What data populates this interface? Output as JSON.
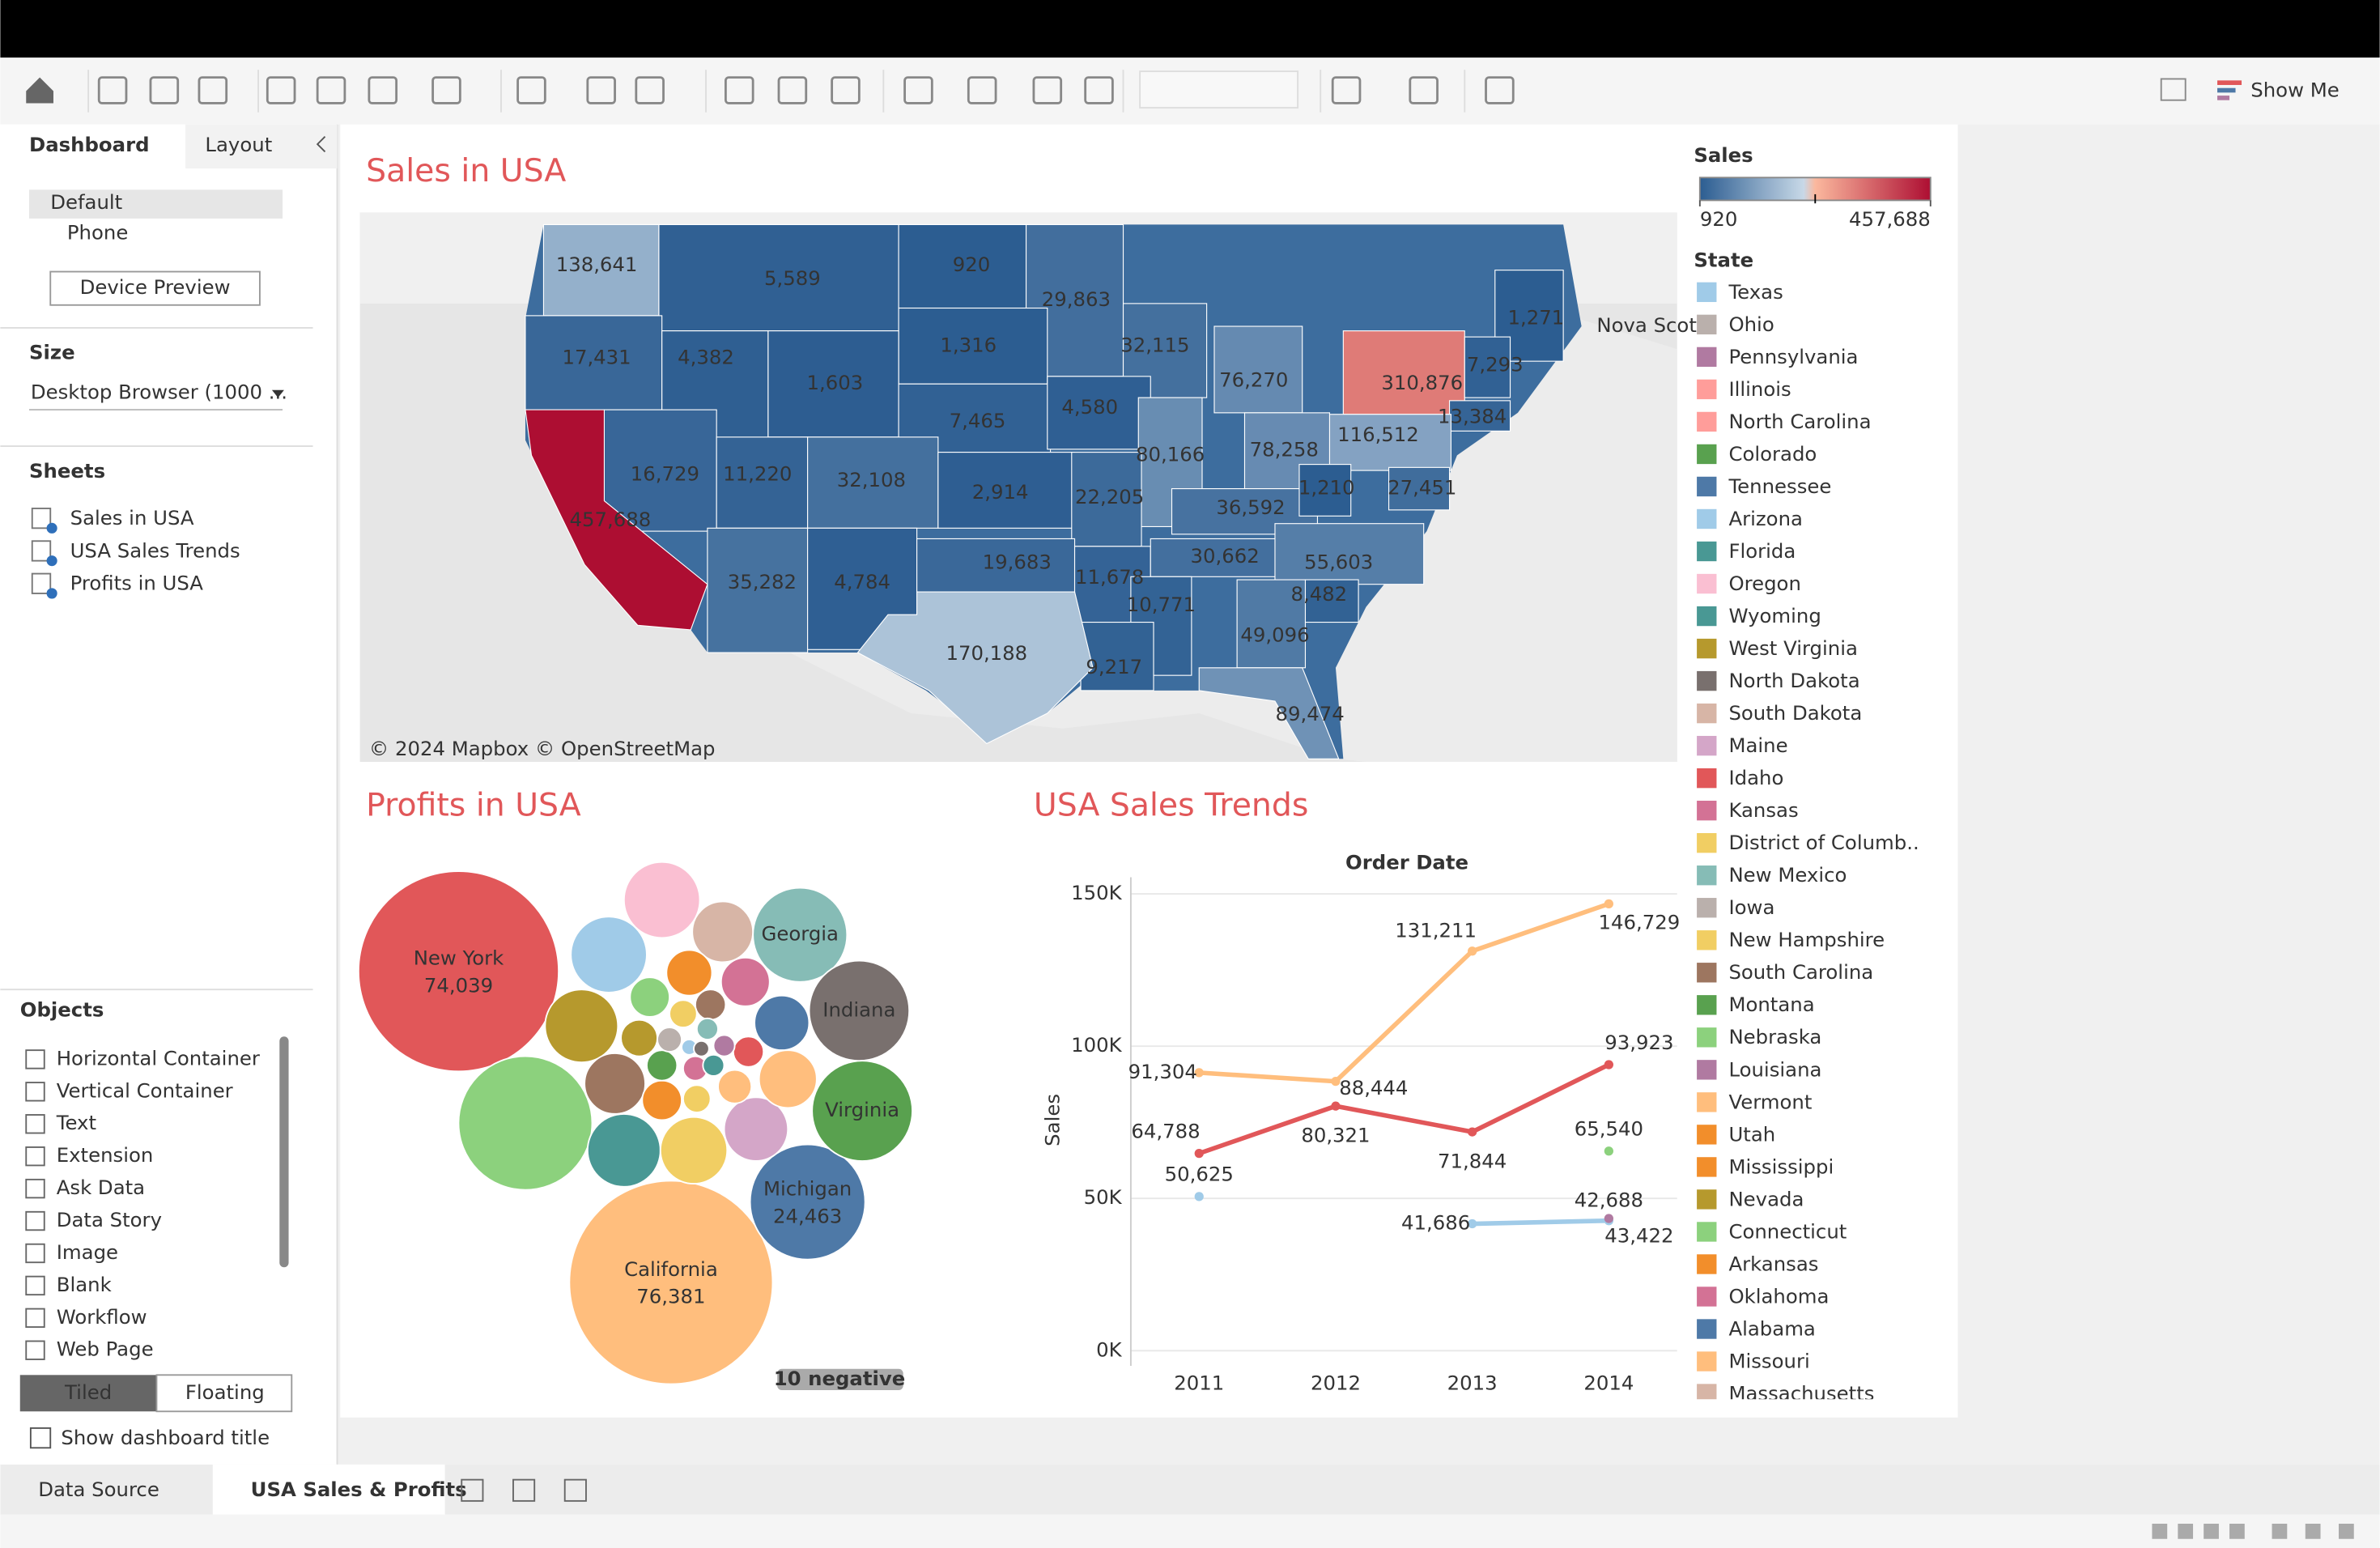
{
  "toolbar": {
    "show_me": "Show Me"
  },
  "sidebar": {
    "tabs": [
      "Dashboard",
      "Layout"
    ],
    "devices": [
      "Default",
      "Phone"
    ],
    "device_preview": "Device Preview",
    "size_heading": "Size",
    "size_value": "Desktop Browser (1000 ...",
    "sheets_heading": "Sheets",
    "sheets": [
      "Sales in USA",
      "USA Sales Trends",
      "Profits in USA"
    ],
    "objects_heading": "Objects",
    "objects": [
      "Horizontal Container",
      "Vertical Container",
      "Text",
      "Extension",
      "Ask Data",
      "Data Story",
      "Image",
      "Blank",
      "Workflow",
      "Web Page"
    ],
    "layout_modes": [
      "Tiled",
      "Floating"
    ],
    "show_title": "Show dashboard title"
  },
  "map": {
    "title": "Sales in USA",
    "values": [
      138641,
      5589,
      920,
      29863,
      1271,
      17431,
      4382,
      1316,
      32115,
      1603,
      76270,
      310876,
      7293,
      13384,
      7465,
      4580,
      116512,
      80166,
      78258,
      16729,
      11220,
      32108,
      2914,
      22205,
      36592,
      1210,
      27451,
      457688,
      35282,
      4784,
      19683,
      11678,
      30662,
      55603,
      10771,
      8482,
      170188,
      9217,
      49096,
      89474
    ],
    "value_labels": [
      "138,641",
      "5,589",
      "920",
      "29,863",
      "1,271",
      "17,431",
      "4,382",
      "1,316",
      "32,115",
      "1,603",
      "76,270",
      "310,876",
      "7,293",
      "13,384",
      "7,465",
      "4,580",
      "116,512",
      "80,166",
      "78,258",
      "16,729",
      "11,220",
      "32,108",
      "2,914",
      "22,205",
      "36,592",
      "1,210",
      "27,451",
      "457,688",
      "35,282",
      "4,784",
      "19,683",
      "11,678",
      "30,662",
      "55,603",
      "10,771",
      "8,482",
      "170,188",
      "9,217",
      "49,096",
      "89,474"
    ],
    "attribution": "© 2024 Mapbox © OpenStreetMap",
    "basemap_label": "Nova Scoti"
  },
  "legend": {
    "color_title": "Sales",
    "color_range": [
      920,
      {
        "value": 457688,
        "label": "457,688"
      }
    ],
    "state_title": "State",
    "states": [
      {
        "name": "Texas",
        "color": "#a0cbe8"
      },
      {
        "name": "Ohio",
        "color": "#bab0ac"
      },
      {
        "name": "Pennsylvania",
        "color": "#b07aa1"
      },
      {
        "name": "Illinois",
        "color": "#ff9d9a"
      },
      {
        "name": "North Carolina",
        "color": "#ff9d9a"
      },
      {
        "name": "Colorado",
        "color": "#59a14f"
      },
      {
        "name": "Tennessee",
        "color": "#4e79a7"
      },
      {
        "name": "Arizona",
        "color": "#a0cbe8"
      },
      {
        "name": "Florida",
        "color": "#499894"
      },
      {
        "name": "Oregon",
        "color": "#fabfd2"
      },
      {
        "name": "Wyoming",
        "color": "#499894"
      },
      {
        "name": "West Virginia",
        "color": "#b6992d"
      },
      {
        "name": "North Dakota",
        "color": "#79706e"
      },
      {
        "name": "South Dakota",
        "color": "#d7b5a6"
      },
      {
        "name": "Maine",
        "color": "#d4a6c8"
      },
      {
        "name": "Idaho",
        "color": "#e15759"
      },
      {
        "name": "Kansas",
        "color": "#d37295"
      },
      {
        "name": "District of Columb..",
        "color": "#f1ce63"
      },
      {
        "name": "New Mexico",
        "color": "#86bcb6"
      },
      {
        "name": "Iowa",
        "color": "#bab0ac"
      },
      {
        "name": "New Hampshire",
        "color": "#f1ce63"
      },
      {
        "name": "South Carolina",
        "color": "#9d7660"
      },
      {
        "name": "Montana",
        "color": "#59a14f"
      },
      {
        "name": "Nebraska",
        "color": "#8cd17d"
      },
      {
        "name": "Louisiana",
        "color": "#b07aa1"
      },
      {
        "name": "Vermont",
        "color": "#ffbe7d"
      },
      {
        "name": "Utah",
        "color": "#f28e2b"
      },
      {
        "name": "Mississippi",
        "color": "#f28e2b"
      },
      {
        "name": "Nevada",
        "color": "#b6992d"
      },
      {
        "name": "Connecticut",
        "color": "#8cd17d"
      },
      {
        "name": "Arkansas",
        "color": "#f28e2b"
      },
      {
        "name": "Oklahoma",
        "color": "#d37295"
      },
      {
        "name": "Alabama",
        "color": "#4e79a7"
      },
      {
        "name": "Missouri",
        "color": "#ffbe7d"
      },
      {
        "name": "Massachusetts",
        "color": "#d7b5a6"
      }
    ]
  },
  "bubbles": {
    "type": "bubble",
    "title": "Profits in USA",
    "names": [
      "New York",
      "California",
      "Michigan",
      "Georgia",
      "Indiana",
      "Virginia",
      null,
      null,
      null,
      null,
      null,
      null,
      null,
      null,
      null,
      null,
      null,
      null,
      null,
      null,
      null,
      null,
      null,
      null,
      null,
      null,
      null,
      null,
      null,
      null,
      null,
      null,
      null,
      null,
      null
    ],
    "values": [
      74039,
      76381,
      24463,
      16350,
      18530,
      18600,
      33000,
      10640,
      10640,
      6800,
      9800,
      6800,
      9800,
      8240,
      7500,
      6140,
      5500,
      3830,
      4360,
      2880,
      2450,
      2880,
      1700,
      1380,
      1700,
      2060,
      1700,
      1380,
      1090,
      830,
      830,
      1090,
      830,
      430,
      430
    ],
    "value_labels": [
      "74,039",
      "76,381",
      "24,463",
      null,
      null,
      null,
      null,
      null,
      null,
      null,
      null,
      null,
      null,
      null,
      null,
      null,
      null,
      null,
      null,
      null,
      null,
      null,
      null,
      null,
      null,
      null,
      null,
      null,
      null,
      null,
      null,
      null,
      null,
      null,
      null
    ],
    "colors": [
      "#e15759",
      "#ffbe7d",
      "#4e79a7",
      "#86bcb6",
      "#79706e",
      "#59a14f",
      "#8cd17d",
      "#fabfd2",
      "#a0cbe8",
      "#d7b5a6",
      "#b6992d",
      "#9d7660",
      "#499894",
      "#f1ce63",
      "#d4a6c8",
      "#ffbe7d",
      "#4e79a7",
      "#f28e2b",
      "#d37295",
      "#8cd17d",
      "#b6992d",
      "#f28e2b",
      "#9d7660",
      "#f1ce63",
      "#e15759",
      "#ffbe7d",
      "#59a14f",
      "#f1ce63",
      "#bab0ac",
      "#86bcb6",
      "#b07aa1",
      "#d37295",
      "#499894",
      "#a0cbe8",
      "#79706e"
    ],
    "note": "10 negative"
  },
  "trends": {
    "type": "line",
    "title": "USA Sales Trends",
    "x_title": "Order Date",
    "y_title": "Sales",
    "categories": [
      "2011",
      "2012",
      "2013",
      "2014"
    ],
    "ylim": [
      0,
      155000
    ],
    "yticks": [
      {
        "value": 0,
        "label": "0K"
      },
      {
        "value": 50000,
        "label": "50K"
      },
      {
        "value": 100000,
        "label": "100K"
      },
      {
        "value": 150000,
        "label": "150K"
      }
    ],
    "grid": true,
    "series": [
      {
        "color": "#ffbe7d",
        "values": [
          91304,
          88444,
          131211,
          146729
        ],
        "value_labels": [
          "91,304",
          "88,444",
          "131,211",
          "146,729"
        ]
      },
      {
        "color": "#e15759",
        "values": [
          64788,
          80321,
          71844,
          93923
        ],
        "value_labels": [
          "64,788",
          "80,321",
          "71,844",
          "93,923"
        ]
      },
      {
        "color": "#a0cbe8",
        "values": [
          50625,
          null,
          41686,
          42688
        ],
        "value_labels": [
          "50,625",
          null,
          "41,686",
          "42,688"
        ]
      },
      {
        "color": "#8cd17d",
        "values": [
          null,
          null,
          null,
          65540
        ],
        "value_labels": [
          null,
          null,
          null,
          "65,540"
        ]
      },
      {
        "color": "#b07aa1",
        "values": [
          null,
          null,
          null,
          43422
        ],
        "value_labels": [
          null,
          null,
          null,
          "43,422"
        ]
      }
    ]
  },
  "tabs": {
    "data_source": "Data Source",
    "sheet": "USA Sales & Profits"
  }
}
